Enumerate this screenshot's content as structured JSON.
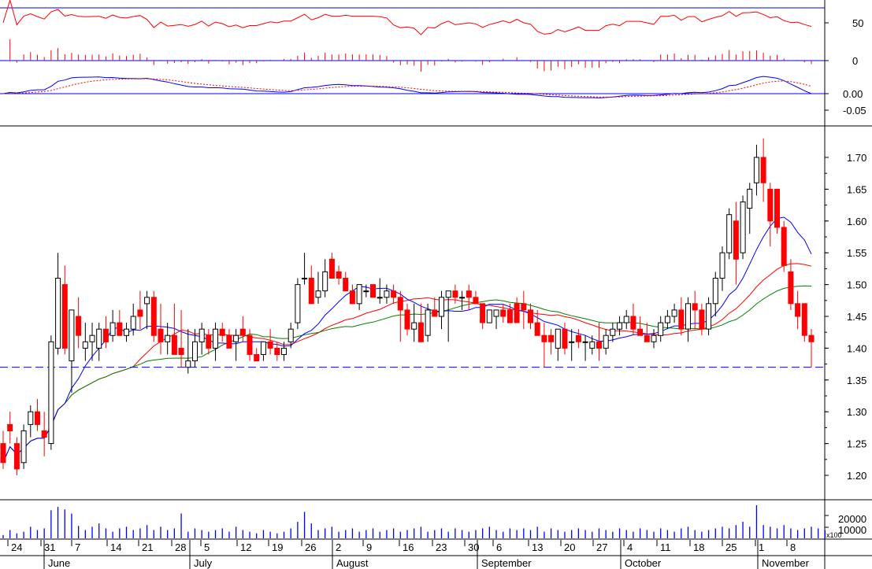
{
  "chart_data": {
    "type": "candlestick",
    "reference_level": 1.37,
    "month_labels": [
      "June",
      "July",
      "August",
      "September",
      "October",
      "November"
    ],
    "date_ticks": [
      "24",
      "31",
      "7",
      "14",
      "21",
      "28",
      "5",
      "12",
      "19",
      "26",
      "2",
      "9",
      "16",
      "23",
      "30",
      "6",
      "13",
      "20",
      "27",
      "4",
      "11",
      "18",
      "25",
      "1",
      "8"
    ],
    "panels": {
      "oscillator": {
        "ticks": [
          "50",
          "0"
        ]
      },
      "macd": {
        "ticks": [
          "0.00",
          "-0.05"
        ]
      },
      "price": {
        "ticks": [
          "1.70",
          "1.65",
          "1.60",
          "1.55",
          "1.50",
          "1.45",
          "1.40",
          "1.35",
          "1.30",
          "1.25",
          "1.20"
        ],
        "ylim": [
          1.18,
          1.76
        ]
      },
      "volume": {
        "ticks": [
          "20000",
          "10000"
        ],
        "multiplier_label": "x100"
      }
    },
    "colors": {
      "up_candle": "#ffffff",
      "down_candle": "#ff0000",
      "ma_short": "#ff0000",
      "ma_mid": "#0000ff",
      "ma_long": "#008000",
      "volume": "#0000ff",
      "reference_line": "#0000ff"
    },
    "candles": [
      [
        1.25,
        1.27,
        1.21,
        1.22
      ],
      [
        1.28,
        1.3,
        1.25,
        1.27
      ],
      [
        1.25,
        1.26,
        1.2,
        1.21
      ],
      [
        1.22,
        1.28,
        1.21,
        1.27
      ],
      [
        1.28,
        1.31,
        1.26,
        1.3
      ],
      [
        1.3,
        1.32,
        1.27,
        1.28
      ],
      [
        1.27,
        1.3,
        1.23,
        1.26
      ],
      [
        1.25,
        1.42,
        1.24,
        1.41
      ],
      [
        1.4,
        1.55,
        1.39,
        1.51
      ],
      [
        1.5,
        1.53,
        1.39,
        1.4
      ],
      [
        1.38,
        1.46,
        1.33,
        1.46
      ],
      [
        1.45,
        1.48,
        1.4,
        1.42
      ],
      [
        1.4,
        1.44,
        1.38,
        1.41
      ],
      [
        1.41,
        1.44,
        1.38,
        1.42
      ],
      [
        1.4,
        1.44,
        1.38,
        1.43
      ],
      [
        1.43,
        1.45,
        1.4,
        1.41
      ],
      [
        1.42,
        1.46,
        1.41,
        1.44
      ],
      [
        1.44,
        1.46,
        1.42,
        1.42
      ],
      [
        1.42,
        1.44,
        1.41,
        1.43
      ],
      [
        1.43,
        1.47,
        1.42,
        1.45
      ],
      [
        1.46,
        1.49,
        1.43,
        1.45
      ],
      [
        1.47,
        1.49,
        1.43,
        1.48
      ],
      [
        1.48,
        1.49,
        1.41,
        1.42
      ],
      [
        1.43,
        1.47,
        1.39,
        1.41
      ],
      [
        1.41,
        1.44,
        1.39,
        1.42
      ],
      [
        1.42,
        1.47,
        1.39,
        1.39
      ],
      [
        1.4,
        1.46,
        1.37,
        1.39
      ],
      [
        1.37,
        1.43,
        1.36,
        1.38
      ],
      [
        1.38,
        1.43,
        1.37,
        1.41
      ],
      [
        1.41,
        1.44,
        1.39,
        1.43
      ],
      [
        1.42,
        1.43,
        1.39,
        1.4
      ],
      [
        1.4,
        1.44,
        1.38,
        1.43
      ],
      [
        1.43,
        1.44,
        1.41,
        1.42
      ],
      [
        1.42,
        1.43,
        1.4,
        1.4
      ],
      [
        1.41,
        1.43,
        1.38,
        1.42
      ],
      [
        1.43,
        1.45,
        1.41,
        1.42
      ],
      [
        1.42,
        1.43,
        1.38,
        1.39
      ],
      [
        1.39,
        1.4,
        1.38,
        1.38
      ],
      [
        1.39,
        1.41,
        1.38,
        1.41
      ],
      [
        1.41,
        1.43,
        1.39,
        1.4
      ],
      [
        1.4,
        1.41,
        1.38,
        1.39
      ],
      [
        1.39,
        1.41,
        1.38,
        1.4
      ],
      [
        1.41,
        1.44,
        1.4,
        1.43
      ],
      [
        1.44,
        1.51,
        1.43,
        1.5
      ],
      [
        1.51,
        1.55,
        1.5,
        1.51
      ],
      [
        1.51,
        1.53,
        1.47,
        1.47
      ],
      [
        1.48,
        1.52,
        1.47,
        1.49
      ],
      [
        1.49,
        1.54,
        1.48,
        1.52
      ],
      [
        1.54,
        1.55,
        1.51,
        1.51
      ],
      [
        1.52,
        1.53,
        1.5,
        1.51
      ],
      [
        1.51,
        1.52,
        1.49,
        1.49
      ],
      [
        1.49,
        1.5,
        1.47,
        1.47
      ],
      [
        1.47,
        1.5,
        1.46,
        1.5
      ],
      [
        1.49,
        1.5,
        1.48,
        1.49
      ],
      [
        1.5,
        1.5,
        1.48,
        1.48
      ],
      [
        1.48,
        1.51,
        1.47,
        1.48
      ],
      [
        1.48,
        1.5,
        1.47,
        1.49
      ],
      [
        1.49,
        1.5,
        1.47,
        1.48
      ],
      [
        1.48,
        1.49,
        1.41,
        1.46
      ],
      [
        1.46,
        1.47,
        1.42,
        1.43
      ],
      [
        1.43,
        1.47,
        1.41,
        1.44
      ],
      [
        1.44,
        1.47,
        1.41,
        1.41
      ],
      [
        1.42,
        1.47,
        1.41,
        1.46
      ],
      [
        1.46,
        1.48,
        1.45,
        1.45
      ],
      [
        1.45,
        1.49,
        1.43,
        1.48
      ],
      [
        1.48,
        1.49,
        1.41,
        1.49
      ],
      [
        1.49,
        1.5,
        1.47,
        1.48
      ],
      [
        1.48,
        1.49,
        1.46,
        1.48
      ],
      [
        1.49,
        1.5,
        1.46,
        1.48
      ],
      [
        1.48,
        1.49,
        1.47,
        1.47
      ],
      [
        1.47,
        1.47,
        1.43,
        1.44
      ],
      [
        1.44,
        1.46,
        1.44,
        1.46
      ],
      [
        1.45,
        1.46,
        1.43,
        1.46
      ],
      [
        1.46,
        1.47,
        1.44,
        1.45
      ],
      [
        1.46,
        1.47,
        1.44,
        1.44
      ],
      [
        1.47,
        1.48,
        1.44,
        1.44
      ],
      [
        1.47,
        1.49,
        1.43,
        1.46
      ],
      [
        1.46,
        1.47,
        1.43,
        1.44
      ],
      [
        1.44,
        1.46,
        1.42,
        1.42
      ],
      [
        1.42,
        1.44,
        1.37,
        1.41
      ],
      [
        1.42,
        1.43,
        1.39,
        1.41
      ],
      [
        1.4,
        1.43,
        1.38,
        1.43
      ],
      [
        1.43,
        1.44,
        1.39,
        1.4
      ],
      [
        1.41,
        1.43,
        1.38,
        1.41
      ],
      [
        1.42,
        1.43,
        1.4,
        1.41
      ],
      [
        1.41,
        1.42,
        1.38,
        1.41
      ],
      [
        1.4,
        1.42,
        1.39,
        1.41
      ],
      [
        1.41,
        1.44,
        1.38,
        1.4
      ],
      [
        1.4,
        1.43,
        1.39,
        1.42
      ],
      [
        1.42,
        1.44,
        1.41,
        1.43
      ],
      [
        1.43,
        1.45,
        1.42,
        1.44
      ],
      [
        1.44,
        1.46,
        1.43,
        1.45
      ],
      [
        1.45,
        1.47,
        1.42,
        1.43
      ],
      [
        1.43,
        1.45,
        1.42,
        1.42
      ],
      [
        1.42,
        1.44,
        1.41,
        1.41
      ],
      [
        1.41,
        1.43,
        1.4,
        1.42
      ],
      [
        1.42,
        1.45,
        1.41,
        1.44
      ],
      [
        1.44,
        1.46,
        1.43,
        1.45
      ],
      [
        1.45,
        1.47,
        1.44,
        1.46
      ],
      [
        1.46,
        1.48,
        1.42,
        1.43
      ],
      [
        1.43,
        1.48,
        1.41,
        1.47
      ],
      [
        1.47,
        1.49,
        1.43,
        1.46
      ],
      [
        1.46,
        1.47,
        1.42,
        1.43
      ],
      [
        1.43,
        1.48,
        1.42,
        1.47
      ],
      [
        1.47,
        1.52,
        1.45,
        1.51
      ],
      [
        1.51,
        1.56,
        1.49,
        1.55
      ],
      [
        1.55,
        1.62,
        1.54,
        1.61
      ],
      [
        1.6,
        1.63,
        1.5,
        1.54
      ],
      [
        1.55,
        1.64,
        1.54,
        1.63
      ],
      [
        1.62,
        1.66,
        1.58,
        1.65
      ],
      [
        1.66,
        1.72,
        1.64,
        1.7
      ],
      [
        1.7,
        1.73,
        1.63,
        1.66
      ],
      [
        1.65,
        1.66,
        1.56,
        1.6
      ],
      [
        1.65,
        1.65,
        1.58,
        1.59
      ],
      [
        1.59,
        1.6,
        1.52,
        1.53
      ],
      [
        1.52,
        1.54,
        1.46,
        1.47
      ],
      [
        1.47,
        1.49,
        1.43,
        1.45
      ],
      [
        1.47,
        1.47,
        1.41,
        1.42
      ],
      [
        1.42,
        1.43,
        1.37,
        1.41
      ]
    ],
    "volume": [
      4,
      10,
      6,
      8,
      14,
      10,
      12,
      34,
      38,
      35,
      30,
      15,
      10,
      14,
      18,
      12,
      8,
      12,
      14,
      10,
      12,
      16,
      10,
      14,
      10,
      12,
      30,
      8,
      12,
      10,
      8,
      10,
      12,
      8,
      14,
      10,
      8,
      6,
      10,
      8,
      6,
      8,
      12,
      20,
      32,
      18,
      10,
      12,
      14,
      8,
      10,
      12,
      8,
      10,
      12,
      8,
      10,
      12,
      8,
      10,
      12,
      14,
      8,
      10,
      12,
      8,
      12,
      10,
      8,
      10,
      12,
      14,
      10,
      8,
      12,
      10,
      12,
      10,
      14,
      8,
      12,
      10,
      8,
      10,
      12,
      10,
      8,
      12,
      10,
      8,
      12,
      10,
      8,
      12,
      10,
      8,
      12,
      10,
      8,
      12,
      14,
      10,
      8,
      10,
      12,
      14,
      12,
      16,
      20,
      14,
      40,
      16,
      14,
      12,
      16,
      12,
      10,
      12,
      14,
      12,
      10
    ]
  }
}
